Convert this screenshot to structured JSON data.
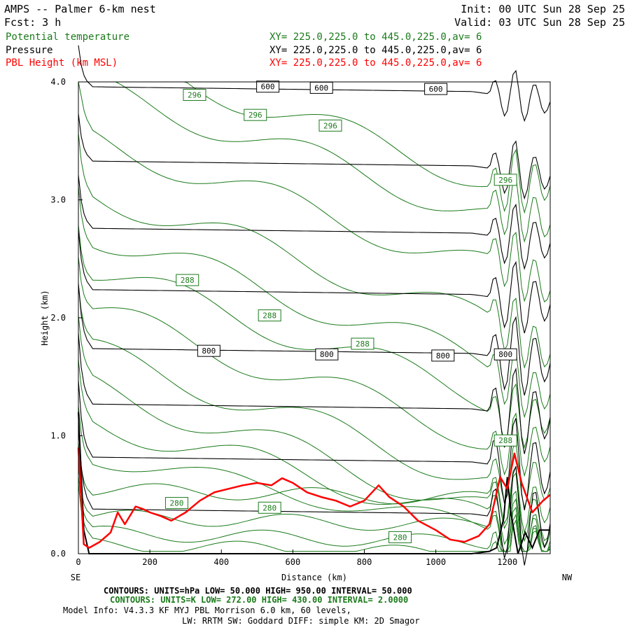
{
  "header": {
    "title": "AMPS -- Palmer 6-km nest",
    "init": "Init: 00 UTC Sun 28 Sep 25",
    "fcst": "Fcst:    3 h",
    "valid": "Valid: 03 UTC Sun 28 Sep 25",
    "fields": [
      {
        "name": "Potential temperature",
        "xy": "XY= 225.0,225.0 to 445.0,225.0,av=  6",
        "color": "#1a7a1a"
      },
      {
        "name": "Pressure",
        "xy": "XY= 225.0,225.0 to 445.0,225.0,av=  6",
        "color": "#000000"
      },
      {
        "name": "PBL Height (km MSL)",
        "xy": "XY= 225.0,225.0 to 445.0,225.0,av=  6",
        "color": "#ff0000"
      }
    ]
  },
  "footer": {
    "line1": "CONTOURS:  UNITS=hPa  LOW=  50.000      HIGH=  950.00      INTERVAL=   50.000",
    "line2": "CONTOURS:  UNITS=K  LOW=  272.00      HIGH=  430.00      INTERVAL=   2.0000",
    "line3": "Model Info: V4.3.3   KF     MYJ PBL  Morrison         6.0 km,  60 levels,",
    "line4": "LW: RRTM SW: Goddard DIFF: simple KM: 2D Smagor"
  },
  "chart_data": {
    "type": "line",
    "xlabel": "Distance (km)",
    "ylabel": "Height (km)",
    "xlim": [
      0,
      1320
    ],
    "ylim": [
      0,
      4.0
    ],
    "x_ticks": [
      0,
      200,
      400,
      600,
      800,
      1000,
      1200
    ],
    "y_ticks": [
      "0.0",
      "1.0",
      "2.0",
      "3.0",
      "4.0"
    ],
    "x_end_labels": {
      "left": "SE",
      "right": "NW"
    },
    "colors": {
      "theta": "#1a7a1a",
      "pressure": "#000000",
      "pbl": "#ff0000"
    },
    "pressure_labels": [
      {
        "text": "600",
        "x": 530,
        "y": 3.96
      },
      {
        "text": "600",
        "x": 680,
        "y": 3.95
      },
      {
        "text": "600",
        "x": 1000,
        "y": 3.94
      },
      {
        "text": "800",
        "x": 365,
        "y": 1.72
      },
      {
        "text": "800",
        "x": 695,
        "y": 1.69
      },
      {
        "text": "800",
        "x": 1020,
        "y": 1.68
      },
      {
        "text": "800",
        "x": 1195,
        "y": 1.69
      }
    ],
    "theta_labels": [
      {
        "text": "296",
        "x": 325,
        "y": 3.89
      },
      {
        "text": "296",
        "x": 495,
        "y": 3.72
      },
      {
        "text": "296",
        "x": 705,
        "y": 3.63
      },
      {
        "text": "296",
        "x": 1195,
        "y": 3.17
      },
      {
        "text": "288",
        "x": 305,
        "y": 2.32
      },
      {
        "text": "288",
        "x": 535,
        "y": 2.02
      },
      {
        "text": "288",
        "x": 795,
        "y": 1.78
      },
      {
        "text": "288",
        "x": 1195,
        "y": 0.96
      },
      {
        "text": "280",
        "x": 275,
        "y": 0.43
      },
      {
        "text": "280",
        "x": 535,
        "y": 0.39
      },
      {
        "text": "280",
        "x": 900,
        "y": 0.14
      }
    ],
    "pbl_height": {
      "x": [
        0,
        15,
        30,
        60,
        90,
        110,
        130,
        160,
        180,
        200,
        230,
        260,
        300,
        340,
        380,
        420,
        460,
        500,
        540,
        570,
        600,
        640,
        680,
        720,
        760,
        800,
        840,
        870,
        910,
        950,
        1000,
        1040,
        1080,
        1120,
        1150,
        1180,
        1200,
        1220,
        1240,
        1270,
        1300,
        1320
      ],
      "y": [
        0.9,
        0.08,
        0.05,
        0.1,
        0.18,
        0.35,
        0.25,
        0.4,
        0.38,
        0.35,
        0.32,
        0.28,
        0.35,
        0.45,
        0.52,
        0.55,
        0.58,
        0.6,
        0.58,
        0.64,
        0.6,
        0.52,
        0.48,
        0.45,
        0.4,
        0.45,
        0.58,
        0.48,
        0.4,
        0.28,
        0.2,
        0.12,
        0.1,
        0.15,
        0.25,
        0.65,
        0.55,
        0.85,
        0.6,
        0.35,
        0.45,
        0.5
      ]
    },
    "terrain": {
      "x": [
        0,
        15,
        30,
        60,
        120,
        200,
        300,
        500,
        800,
        1000,
        1100,
        1150,
        1170,
        1190,
        1200,
        1210,
        1230,
        1250,
        1270,
        1290,
        1320
      ],
      "y": [
        1.2,
        0.2,
        0.0,
        0.0,
        0.0,
        0.0,
        0.0,
        0.0,
        0.0,
        0.0,
        0.0,
        0.02,
        0.05,
        0.3,
        0.65,
        0.35,
        0.0,
        0.18,
        0.05,
        0.2,
        0.2
      ]
    }
  }
}
